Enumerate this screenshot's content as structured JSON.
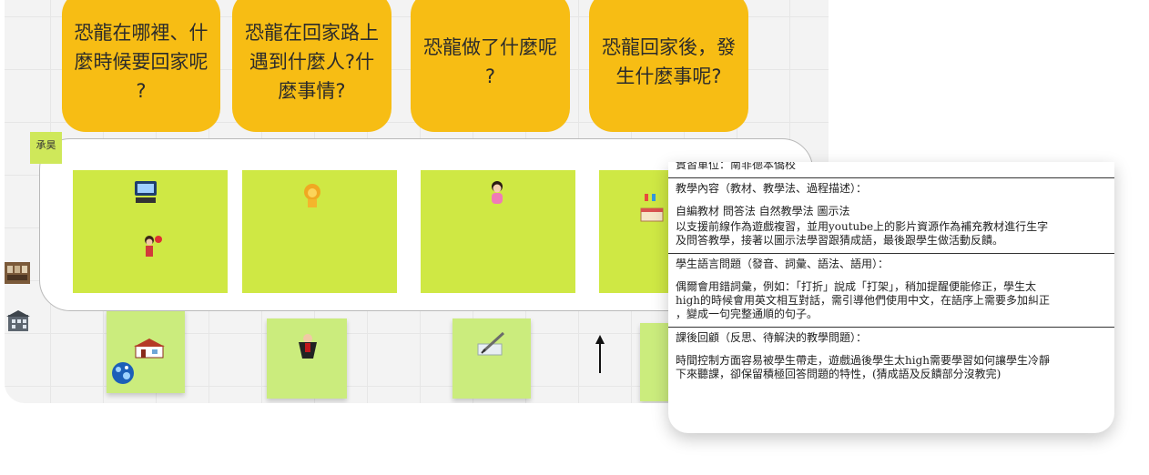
{
  "questions": [
    {
      "lines": [
        "恐龍在哪裡、什",
        "麼時候要回家呢",
        "?"
      ]
    },
    {
      "lines": [
        "恐龍在回家路上",
        "遇到什麼人?什",
        "麼事情?"
      ]
    },
    {
      "lines": [
        "恐龍做了什麼呢",
        "?"
      ]
    },
    {
      "lines": [
        "恐龍回家後，發",
        "生什麼事呢?"
      ]
    }
  ],
  "label_tag": "承昊",
  "icons": {
    "frame_icons": [
      "computer-icon",
      "girl-with-ball-icon",
      "lion-icon",
      "baby-icon",
      "birthday-cake-icon"
    ],
    "sticky_icons": [
      "house-icon",
      "globe-icon",
      "vampire-icon",
      "writing-icon",
      "arrow-up-icon"
    ],
    "side_icons": [
      "classroom-icon",
      "building-icon"
    ]
  },
  "panel": {
    "unit": "實習單位：南非德本僑校",
    "content_heading": "教學內容（教材、教學法、過程描述）：",
    "content_methods": "自編教材 問答法 自然教學法 圖示法",
    "content_line1": "以支援前線作為遊戲複習，並用youtube上的影片資源作為補充教材進行生字",
    "content_line2": "及問答教學，接著以圖示法學習跟猜成語，最後跟學生做活動反饋。",
    "issues_heading": "學生語言問題（發音、詞彙、語法、語用）：",
    "issues_line1": "偶爾會用錯詞彙，例如：「打折」說成「打架」，稍加提醒便能修正，學生太",
    "issues_line2": "high的時候會用英文相互對話，需引導他們使用中文，在語序上需要多加糾正",
    "issues_line3": "，變成一句完整通順的句子。",
    "review_heading": "課後回顧（反思、待解決的教學問題）：",
    "review_line1": "時間控制方面容易被學生帶走，遊戲過後學生太high需要學習如何讓學生冷靜",
    "review_line2": "下來聽課，卻保留積極回答問題的特性，(猜成語及反饋部分沒教完)"
  },
  "colors": {
    "question_card": "#f7bd14",
    "green_card": "#cfe844",
    "sticky": "#cbec7d",
    "label_tag": "#cfe85a"
  }
}
